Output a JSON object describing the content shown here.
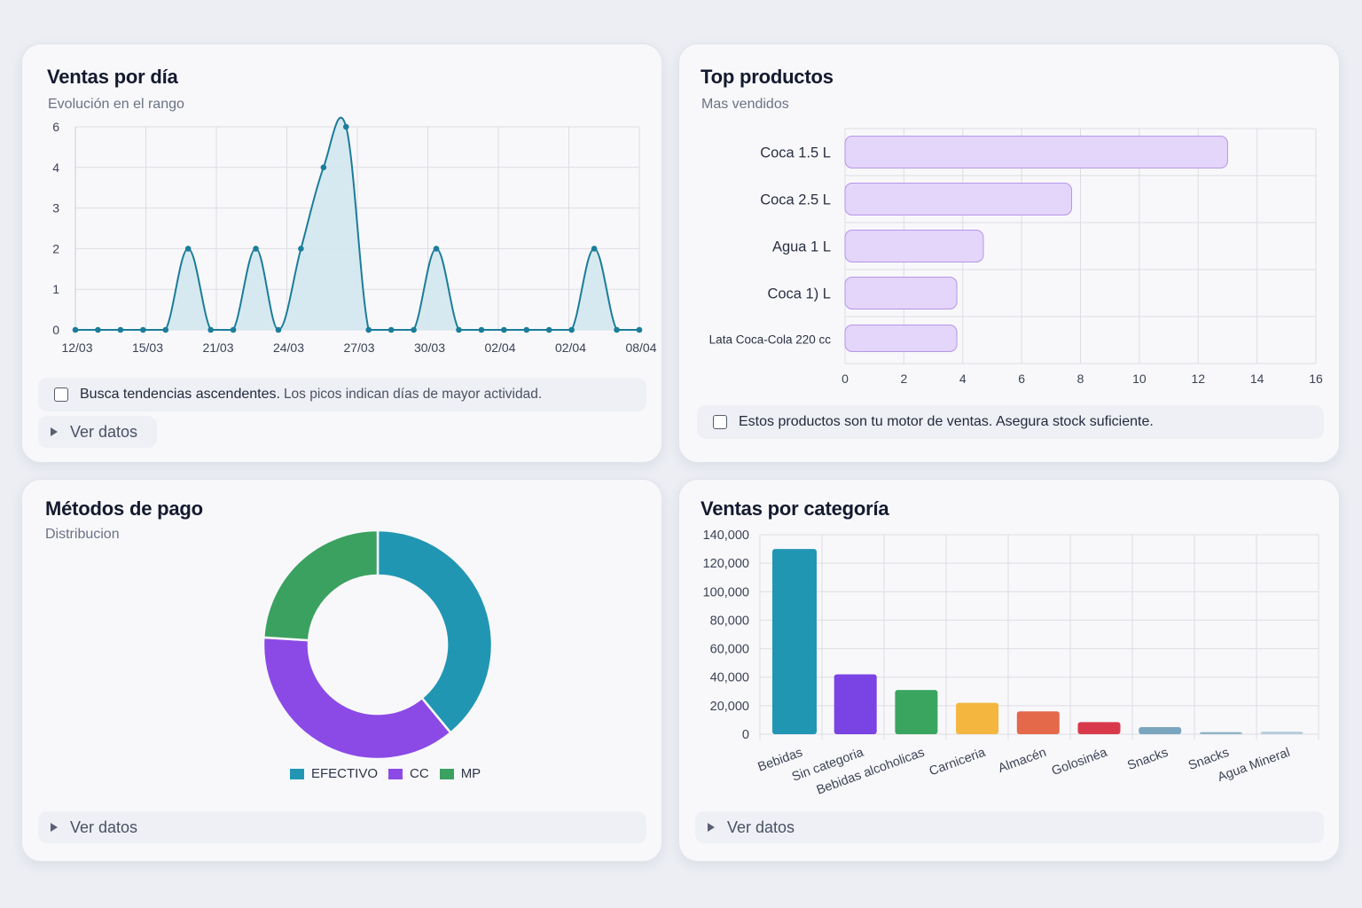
{
  "cards": {
    "sales": {
      "title": "Ventas por día",
      "subtitle": "Evolución en el rango",
      "note_bold": "Busca tendencias ascendentes.",
      "note_rest": "Los picos indican días de mayor actividad.",
      "details_label": "Ver datos"
    },
    "top": {
      "title": "Top productos",
      "subtitle": "Mas vendidos",
      "note": "Estos productos son tu motor de ventas. Asegura stock suficiente."
    },
    "payments": {
      "title": "Métodos de pago",
      "subtitle": "Distribucion",
      "details_label": "Ver datos"
    },
    "category": {
      "title": "Ventas por categoría",
      "details_label": "Ver datos"
    }
  },
  "chart_data": [
    {
      "id": "sales",
      "type": "area",
      "y_ticks": [
        "0",
        "1",
        "2",
        "3",
        "4",
        "6"
      ],
      "x_tick_labels": [
        "12/03",
        "15/03",
        "21/03",
        "24/03",
        "27/03",
        "30/03",
        "02/04",
        "02/04",
        "08/04"
      ],
      "values": [
        0,
        0,
        0,
        0,
        0,
        2,
        0,
        0,
        2,
        0,
        2,
        4,
        6,
        0,
        0,
        0,
        2,
        0,
        0,
        0,
        0,
        0,
        0,
        2,
        0,
        0
      ],
      "grid": true,
      "colors": {
        "line": "#1b7d99",
        "fill": "#d3e7ee"
      }
    },
    {
      "id": "top",
      "type": "bar",
      "orientation": "horizontal",
      "categories": [
        "Coca 1.5 L",
        "Coca 2.5 L",
        "Agua 1 L",
        "Coca 1) L",
        "Lata Coca-Cola 220 cc"
      ],
      "values": [
        13,
        7.7,
        4.7,
        3.8,
        3.8
      ],
      "x_ticks": [
        0,
        2,
        4,
        6,
        8,
        10,
        12,
        14,
        16
      ],
      "xlim": [
        0,
        16
      ],
      "grid": true,
      "colors": {
        "fill": "#e4d5fa",
        "stroke": "#b596e8"
      }
    },
    {
      "id": "payments",
      "type": "pie",
      "donut": true,
      "labels": [
        "EFECTIVO",
        "CC",
        "MP"
      ],
      "values": [
        39,
        37,
        24
      ],
      "colors": [
        "#2196b3",
        "#8b4ae6",
        "#3ba160"
      ],
      "legend": "bottom"
    },
    {
      "id": "category",
      "type": "bar",
      "categories": [
        "Bebidas",
        "Sin categoria",
        "Bebidas alcoholicas",
        "Carniceria",
        "Almacén",
        "Golosinéa",
        "Snacks",
        "Snacks",
        "Agua Mineral"
      ],
      "values": [
        130000,
        42000,
        31000,
        22000,
        16000,
        8500,
        5000,
        1500,
        1800
      ],
      "y_ticks": [
        "0",
        "20,000",
        "40,000",
        "60,000",
        "80,000",
        "100,000",
        "120,000",
        "140,000"
      ],
      "ylim": [
        0,
        140000
      ],
      "grid": true,
      "colors": [
        "#2196b3",
        "#7a43e4",
        "#3aa55f",
        "#f4b63f",
        "#e3694a",
        "#d93a4b",
        "#7aa5be",
        "#8fb3c5",
        "#b6d0da"
      ]
    }
  ]
}
